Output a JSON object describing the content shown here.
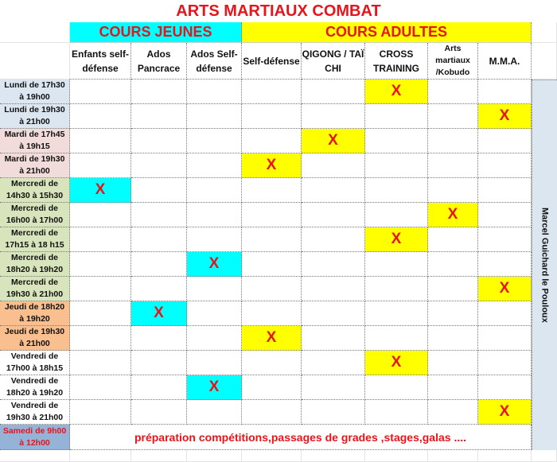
{
  "title": "ARTS MARTIAUX COMBAT",
  "groups": [
    {
      "label": "COURS JEUNES",
      "color": "#00ffff"
    },
    {
      "label": "COURS ADULTES",
      "color": "#ffff00"
    }
  ],
  "columns": [
    "Enfants self-défense",
    "Ados Pancrace",
    "Ados Self-défense",
    "Self-défense",
    "QIGONG / TAÏ CHI",
    "CROSS TRAINING",
    "Arts martiaux /Kobudo",
    "M.M.A."
  ],
  "mark": "X",
  "rows": [
    {
      "label": "Lundi de 17h30 à 19h00",
      "bg": "#dce6f1",
      "col": 5
    },
    {
      "label": "Lundi de 19h30 à 21h00",
      "bg": "#dce6f1",
      "col": 7
    },
    {
      "label": "Mardi de 17h45 à 19h15",
      "bg": "#f2dcdb",
      "col": 4
    },
    {
      "label": "Mardi de 19h30 à 21h00",
      "bg": "#f2dcdb",
      "col": 3
    },
    {
      "label": "Mercredi de 14h30 à 15h30",
      "bg": "#d8e4bc",
      "col": 0
    },
    {
      "label": "Mercredi de 16h00 à 17h00",
      "bg": "#d8e4bc",
      "col": 6
    },
    {
      "label": "Mercredi de 17h15 à 18 h15",
      "bg": "#d8e4bc",
      "col": 5
    },
    {
      "label": "Mercredi de 18h20 à 19h20",
      "bg": "#d8e4bc",
      "col": 2
    },
    {
      "label": "Mercredi de 19h30 à 21h00",
      "bg": "#d8e4bc",
      "col": 7
    },
    {
      "label": "Jeudi de 18h20 à 19h20",
      "bg": "#fabf8f",
      "col": 1
    },
    {
      "label": "Jeudi de 19h30 à 21h00",
      "bg": "#fabf8f",
      "col": 3
    },
    {
      "label": "Vendredi de 17h00 à 18h15",
      "bg": "#ffffff",
      "col": 5
    },
    {
      "label": "Vendredi de 18h20 à 19h20",
      "bg": "#ffffff",
      "col": 2
    },
    {
      "label": "Vendredi de 19h30 à 21h00",
      "bg": "#ffffff",
      "col": 7
    }
  ],
  "samedi": {
    "label": "Samedi de 9h00 à 12h00",
    "bg": "#95b3d7",
    "text": "préparation compétitions,passages de grades ,stages,galas ...."
  },
  "instructor": "Marcel Guichard le Pouloux",
  "colors": {
    "accent_text": "#e8141c",
    "youth": "#00ffff",
    "adult": "#ffff00",
    "instructor_bg": "#dce6f1"
  }
}
